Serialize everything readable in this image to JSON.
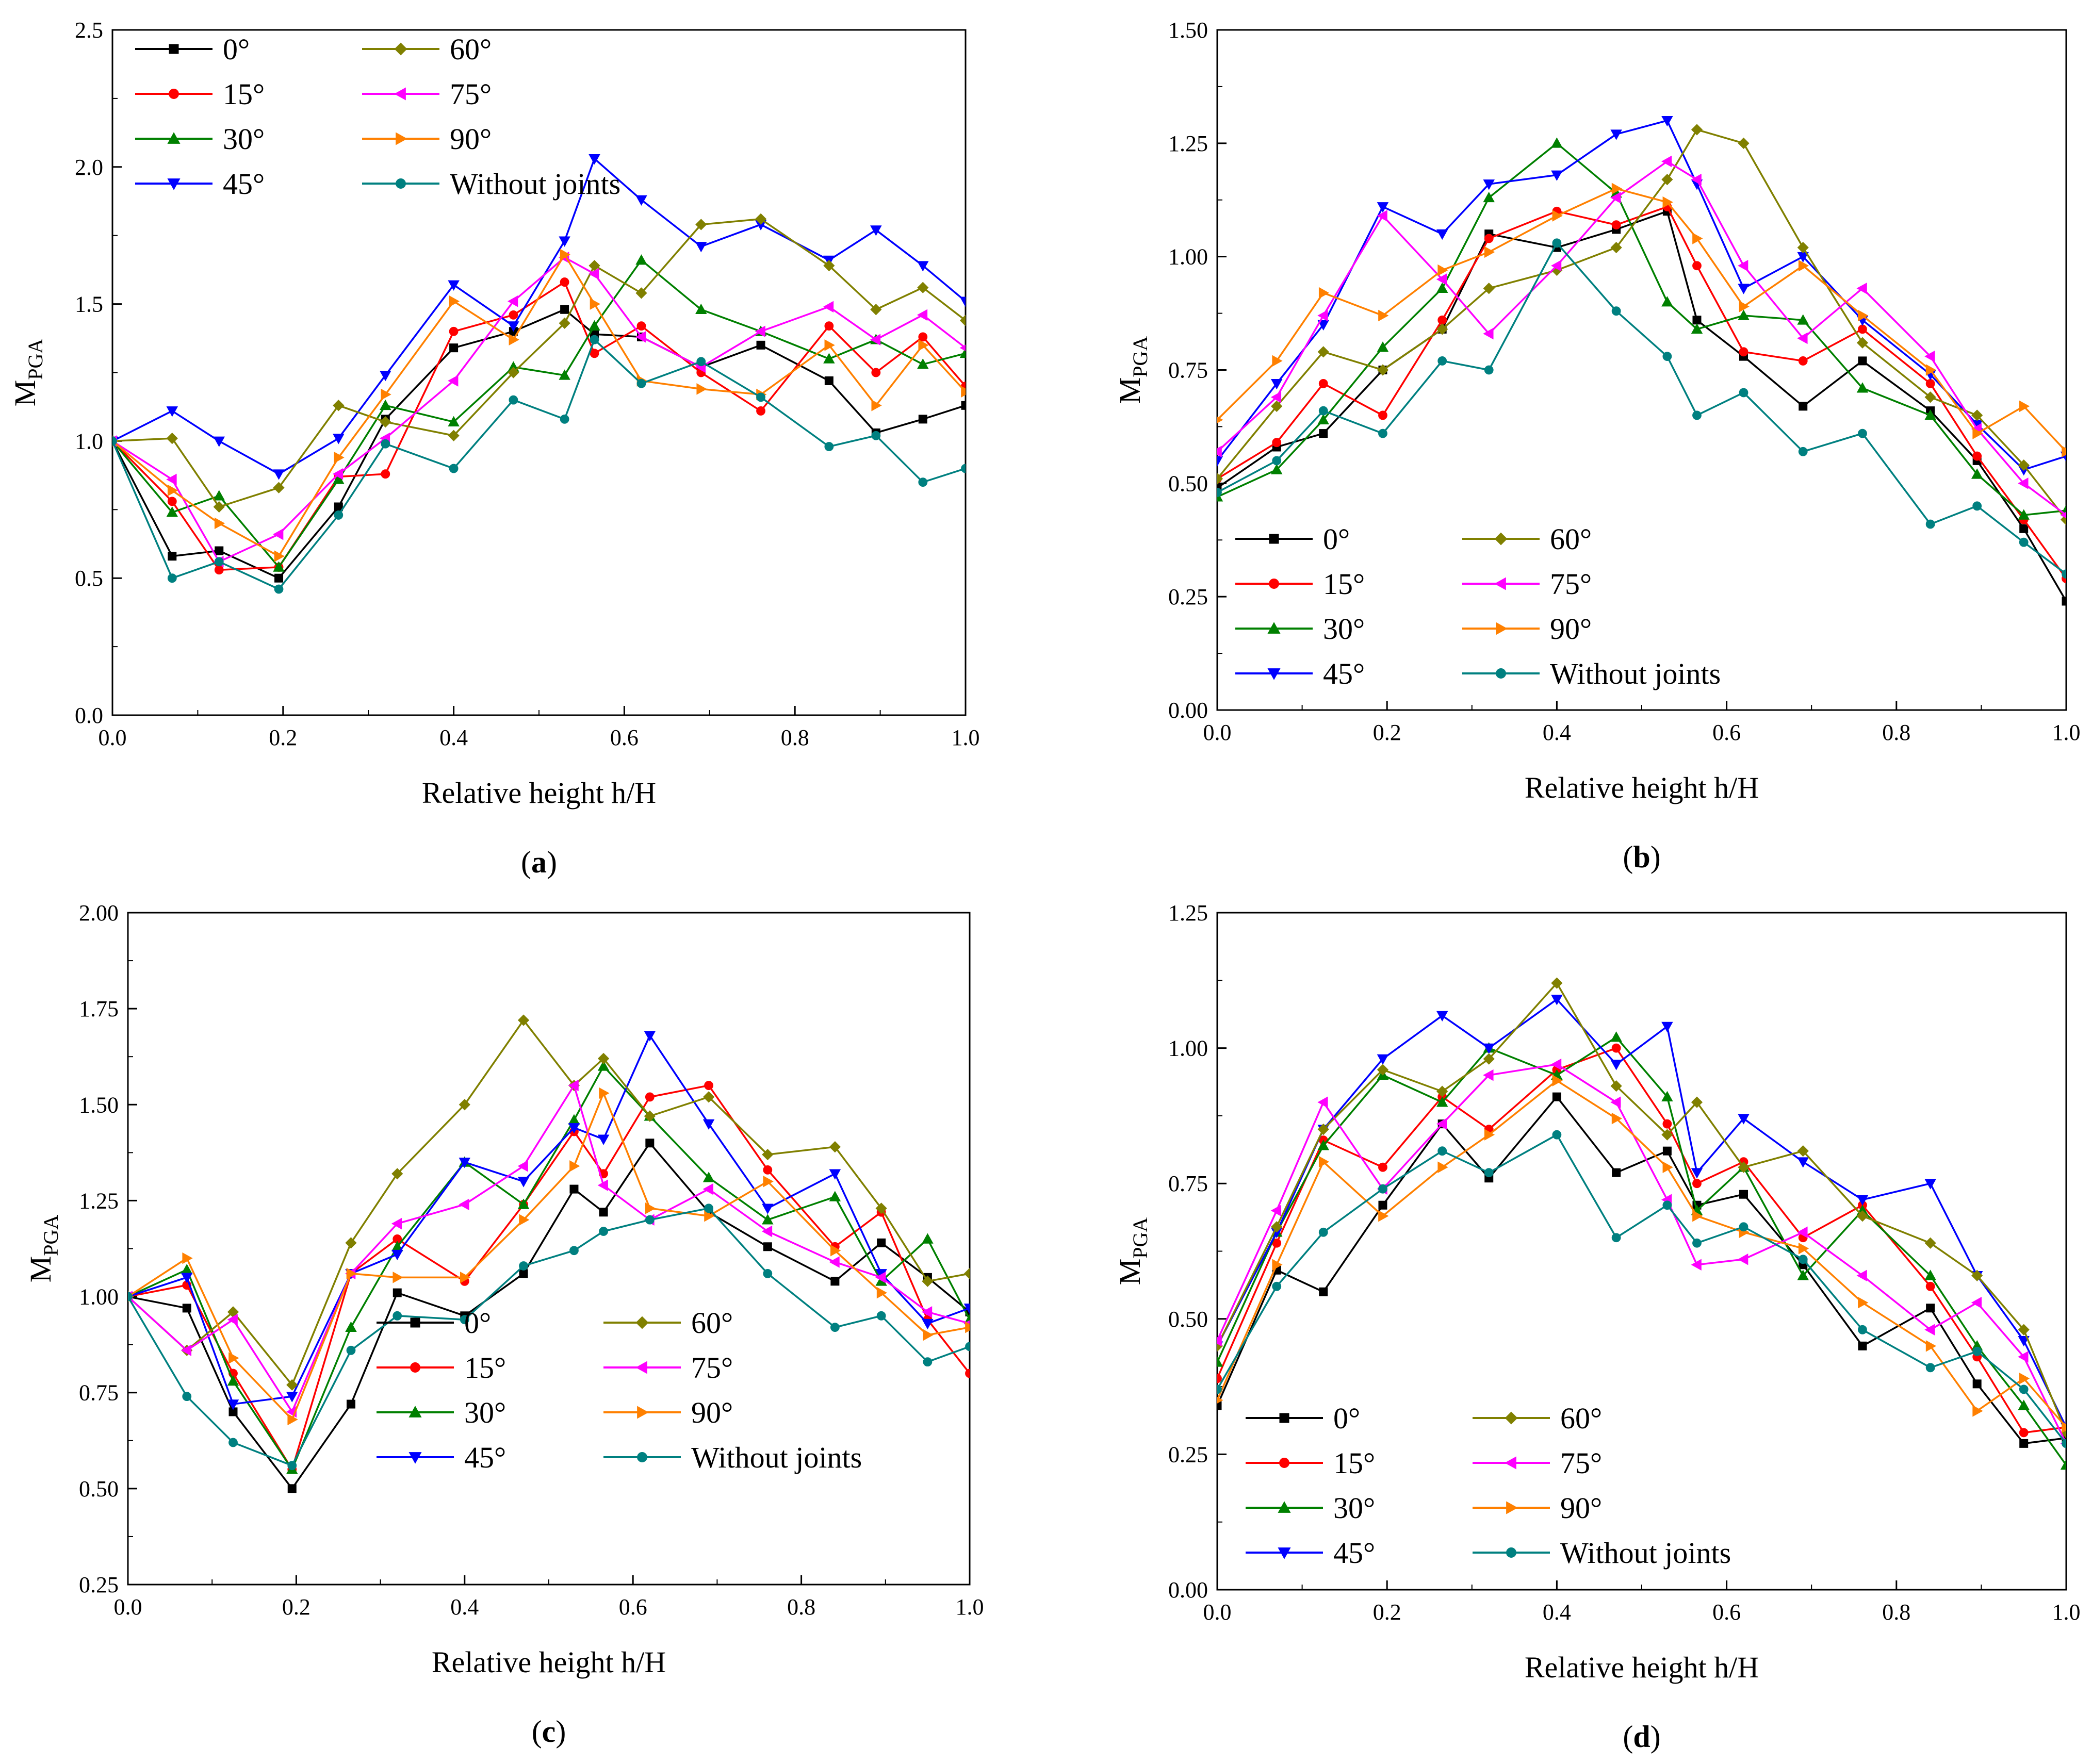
{
  "figure": {
    "colors": {
      "0°": "#000000",
      "15°": "#ff0000",
      "30°": "#008000",
      "45°": "#0000ff",
      "60°": "#808000",
      "75°": "#ff00ff",
      "90°": "#ff8000",
      "Without joints": "#008080"
    },
    "markers": {
      "0°": "square",
      "15°": "circle",
      "30°": "triangle-up",
      "45°": "triangle-down",
      "60°": "diamond",
      "75°": "triangle-left",
      "90°": "triangle-right",
      "Without joints": "circle"
    }
  },
  "chart_data": [
    {
      "panel": "a",
      "type": "line",
      "title": "",
      "caption_open": "(",
      "caption_letter": "a",
      "caption_close": ")",
      "xlabel": "Relative height h/H",
      "ylabel_main": "M",
      "ylabel_sub": "PGA",
      "xlim": [
        0.0,
        1.0
      ],
      "ylim": [
        0.0,
        2.5
      ],
      "xticks": [
        "0.0",
        "0.2",
        "0.4",
        "0.6",
        "0.8",
        "1.0"
      ],
      "yticks": [
        "0.0",
        "0.5",
        "1.0",
        "1.5",
        "2.0",
        "2.5"
      ],
      "legend_position": "top-left",
      "x": [
        0.0,
        0.07,
        0.125,
        0.195,
        0.265,
        0.32,
        0.4,
        0.47,
        0.53,
        0.565,
        0.62,
        0.69,
        0.76,
        0.84,
        0.895,
        0.95,
        1.0
      ],
      "series": [
        {
          "name": "0°",
          "values": [
            1.0,
            0.58,
            0.6,
            0.5,
            0.76,
            1.08,
            1.34,
            1.4,
            1.48,
            1.39,
            1.38,
            1.27,
            1.35,
            1.22,
            1.03,
            1.08,
            1.13
          ]
        },
        {
          "name": "15°",
          "values": [
            1.0,
            0.78,
            0.53,
            0.54,
            0.87,
            0.88,
            1.4,
            1.46,
            1.58,
            1.32,
            1.42,
            1.25,
            1.11,
            1.42,
            1.25,
            1.38,
            1.2
          ]
        },
        {
          "name": "30°",
          "values": [
            1.0,
            0.74,
            0.8,
            0.54,
            0.86,
            1.13,
            1.07,
            1.27,
            1.24,
            1.42,
            1.66,
            1.48,
            1.4,
            1.3,
            1.37,
            1.28,
            1.32
          ]
        },
        {
          "name": "45°",
          "values": [
            1.0,
            1.11,
            1.0,
            0.88,
            1.01,
            1.24,
            1.57,
            1.42,
            1.73,
            2.03,
            1.88,
            1.71,
            1.79,
            1.66,
            1.77,
            1.64,
            1.51
          ]
        },
        {
          "name": "60°",
          "values": [
            1.0,
            1.01,
            0.76,
            0.83,
            1.13,
            1.07,
            1.02,
            1.25,
            1.43,
            1.64,
            1.54,
            1.79,
            1.81,
            1.64,
            1.48,
            1.56,
            1.44
          ]
        },
        {
          "name": "75°",
          "values": [
            1.0,
            0.86,
            0.56,
            0.66,
            0.88,
            1.01,
            1.22,
            1.51,
            1.67,
            1.61,
            1.38,
            1.27,
            1.4,
            1.49,
            1.37,
            1.46,
            1.34
          ]
        },
        {
          "name": "90°",
          "values": [
            1.0,
            0.82,
            0.7,
            0.58,
            0.94,
            1.17,
            1.51,
            1.37,
            1.68,
            1.5,
            1.22,
            1.19,
            1.17,
            1.35,
            1.13,
            1.35,
            1.18
          ]
        },
        {
          "name": "Without joints",
          "values": [
            1.0,
            0.5,
            0.56,
            0.46,
            0.73,
            0.99,
            0.9,
            1.15,
            1.08,
            1.37,
            1.21,
            1.29,
            1.16,
            0.98,
            1.02,
            0.85,
            0.9
          ]
        }
      ]
    },
    {
      "panel": "b",
      "type": "line",
      "title": "",
      "caption_open": "(",
      "caption_letter": "b",
      "caption_close": ")",
      "xlabel": "Relative height h/H",
      "ylabel_main": "M",
      "ylabel_sub": "PGA",
      "xlim": [
        0.0,
        1.0
      ],
      "ylim": [
        0.0,
        1.5
      ],
      "xticks": [
        "0.0",
        "0.2",
        "0.4",
        "0.6",
        "0.8",
        "1.0"
      ],
      "yticks": [
        "0.00",
        "0.25",
        "0.50",
        "0.75",
        "1.00",
        "1.25",
        "1.50"
      ],
      "legend_position": "bottom-left",
      "x": [
        0.0,
        0.07,
        0.125,
        0.195,
        0.265,
        0.32,
        0.4,
        0.47,
        0.53,
        0.565,
        0.62,
        0.69,
        0.76,
        0.84,
        0.895,
        0.95,
        1.0
      ],
      "series": [
        {
          "name": "0°",
          "values": [
            0.49,
            0.58,
            0.61,
            0.75,
            0.84,
            1.05,
            1.02,
            1.06,
            1.1,
            0.86,
            0.78,
            0.67,
            0.77,
            0.66,
            0.55,
            0.4,
            0.24
          ]
        },
        {
          "name": "15°",
          "values": [
            0.51,
            0.59,
            0.72,
            0.65,
            0.86,
            1.04,
            1.1,
            1.07,
            1.11,
            0.98,
            0.79,
            0.77,
            0.84,
            0.72,
            0.56,
            0.42,
            0.29
          ]
        },
        {
          "name": "30°",
          "values": [
            0.47,
            0.53,
            0.64,
            0.8,
            0.93,
            1.13,
            1.25,
            1.14,
            0.9,
            0.84,
            0.87,
            0.86,
            0.71,
            0.65,
            0.52,
            0.43,
            0.44
          ]
        },
        {
          "name": "45°",
          "values": [
            0.55,
            0.72,
            0.85,
            1.11,
            1.05,
            1.16,
            1.18,
            1.27,
            1.3,
            1.16,
            0.93,
            1.0,
            0.86,
            0.74,
            0.63,
            0.53,
            0.56
          ]
        },
        {
          "name": "60°",
          "values": [
            0.51,
            0.67,
            0.79,
            0.75,
            0.84,
            0.93,
            0.97,
            1.02,
            1.17,
            1.28,
            1.25,
            1.02,
            0.81,
            0.69,
            0.65,
            0.54,
            0.42
          ]
        },
        {
          "name": "75°",
          "values": [
            0.57,
            0.69,
            0.87,
            1.09,
            0.95,
            0.83,
            0.98,
            1.13,
            1.21,
            1.17,
            0.98,
            0.82,
            0.93,
            0.78,
            0.62,
            0.5,
            0.43
          ]
        },
        {
          "name": "90°",
          "values": [
            0.64,
            0.77,
            0.92,
            0.87,
            0.97,
            1.01,
            1.09,
            1.15,
            1.12,
            1.04,
            0.89,
            0.98,
            0.87,
            0.75,
            0.61,
            0.67,
            0.57
          ]
        },
        {
          "name": "Without joints",
          "values": [
            0.48,
            0.55,
            0.66,
            0.61,
            0.77,
            0.75,
            1.03,
            0.88,
            0.78,
            0.65,
            0.7,
            0.57,
            0.61,
            0.41,
            0.45,
            0.37,
            0.3
          ]
        }
      ]
    },
    {
      "panel": "c",
      "type": "line",
      "title": "",
      "caption_open": "(",
      "caption_letter": "c",
      "caption_close": ")",
      "xlabel": "Relative height h/H",
      "ylabel_main": "M",
      "ylabel_sub": "PGA",
      "xlim": [
        0.0,
        1.0
      ],
      "ylim": [
        0.25,
        2.0
      ],
      "xticks": [
        "0.0",
        "0.2",
        "0.4",
        "0.6",
        "0.8",
        "1.0"
      ],
      "yticks": [
        "0.25",
        "0.50",
        "0.75",
        "1.00",
        "1.25",
        "1.50",
        "1.75",
        "2.00"
      ],
      "legend_position": "bottom-center",
      "x": [
        0.0,
        0.07,
        0.125,
        0.195,
        0.265,
        0.32,
        0.4,
        0.47,
        0.53,
        0.565,
        0.62,
        0.69,
        0.76,
        0.84,
        0.895,
        0.95,
        1.0
      ],
      "series": [
        {
          "name": "0°",
          "values": [
            1.0,
            0.97,
            0.7,
            0.5,
            0.72,
            1.01,
            0.95,
            1.06,
            1.28,
            1.22,
            1.4,
            1.22,
            1.13,
            1.04,
            1.14,
            1.05,
            0.96
          ]
        },
        {
          "name": "15°",
          "values": [
            1.0,
            1.03,
            0.8,
            0.55,
            1.06,
            1.15,
            1.04,
            1.24,
            1.43,
            1.32,
            1.52,
            1.55,
            1.33,
            1.13,
            1.22,
            0.94,
            0.8
          ]
        },
        {
          "name": "30°",
          "values": [
            1.0,
            1.07,
            0.78,
            0.55,
            0.92,
            1.13,
            1.35,
            1.24,
            1.46,
            1.6,
            1.47,
            1.31,
            1.2,
            1.26,
            1.04,
            1.15,
            0.94
          ]
        },
        {
          "name": "45°",
          "values": [
            1.0,
            1.05,
            0.72,
            0.74,
            1.06,
            1.11,
            1.35,
            1.3,
            1.44,
            1.41,
            1.68,
            1.45,
            1.23,
            1.32,
            1.06,
            0.93,
            0.97
          ]
        },
        {
          "name": "60°",
          "values": [
            1.0,
            0.86,
            0.96,
            0.77,
            1.14,
            1.32,
            1.5,
            1.72,
            1.55,
            1.62,
            1.47,
            1.52,
            1.37,
            1.39,
            1.23,
            1.04,
            1.06
          ]
        },
        {
          "name": "75°",
          "values": [
            1.0,
            0.86,
            0.94,
            0.7,
            1.06,
            1.19,
            1.24,
            1.34,
            1.55,
            1.29,
            1.2,
            1.28,
            1.17,
            1.09,
            1.05,
            0.96,
            0.93
          ]
        },
        {
          "name": "90°",
          "values": [
            1.0,
            1.1,
            0.84,
            0.68,
            1.06,
            1.05,
            1.05,
            1.2,
            1.34,
            1.53,
            1.23,
            1.21,
            1.3,
            1.12,
            1.01,
            0.9,
            0.92
          ]
        },
        {
          "name": "Without joints",
          "values": [
            1.0,
            0.74,
            0.62,
            0.56,
            0.86,
            0.95,
            0.94,
            1.08,
            1.12,
            1.17,
            1.2,
            1.23,
            1.06,
            0.92,
            0.95,
            0.83,
            0.87
          ]
        }
      ]
    },
    {
      "panel": "d",
      "type": "line",
      "title": "",
      "caption_open": "(",
      "caption_letter": "d",
      "caption_close": ")",
      "xlabel": "Relative height h/H",
      "ylabel_main": "M",
      "ylabel_sub": "PGA",
      "xlim": [
        0.0,
        1.0
      ],
      "ylim": [
        0.0,
        1.25
      ],
      "xticks": [
        "0.0",
        "0.2",
        "0.4",
        "0.6",
        "0.8",
        "1.0"
      ],
      "yticks": [
        "0.00",
        "0.25",
        "0.50",
        "0.75",
        "1.00",
        "1.25"
      ],
      "legend_position": "bottom-left",
      "x": [
        0.0,
        0.07,
        0.125,
        0.195,
        0.265,
        0.32,
        0.4,
        0.47,
        0.53,
        0.565,
        0.62,
        0.69,
        0.76,
        0.84,
        0.895,
        0.95,
        1.0
      ],
      "series": [
        {
          "name": "0°",
          "values": [
            0.34,
            0.59,
            0.55,
            0.71,
            0.86,
            0.76,
            0.91,
            0.77,
            0.81,
            0.71,
            0.73,
            0.6,
            0.45,
            0.52,
            0.38,
            0.27,
            0.28
          ]
        },
        {
          "name": "15°",
          "values": [
            0.39,
            0.64,
            0.83,
            0.78,
            0.91,
            0.85,
            0.96,
            1.0,
            0.86,
            0.75,
            0.79,
            0.65,
            0.71,
            0.56,
            0.43,
            0.29,
            0.3
          ]
        },
        {
          "name": "30°",
          "values": [
            0.42,
            0.66,
            0.82,
            0.95,
            0.9,
            1.0,
            0.95,
            1.02,
            0.91,
            0.7,
            0.78,
            0.58,
            0.7,
            0.58,
            0.45,
            0.34,
            0.23
          ]
        },
        {
          "name": "45°",
          "values": [
            0.45,
            0.66,
            0.85,
            0.98,
            1.06,
            1.0,
            1.09,
            0.97,
            1.04,
            0.77,
            0.87,
            0.79,
            0.72,
            0.75,
            0.58,
            0.46,
            0.3
          ]
        },
        {
          "name": "60°",
          "values": [
            0.45,
            0.67,
            0.85,
            0.96,
            0.92,
            0.98,
            1.12,
            0.93,
            0.84,
            0.9,
            0.78,
            0.81,
            0.69,
            0.64,
            0.58,
            0.48,
            0.29
          ]
        },
        {
          "name": "75°",
          "values": [
            0.46,
            0.7,
            0.9,
            0.74,
            0.86,
            0.95,
            0.97,
            0.9,
            0.72,
            0.6,
            0.61,
            0.66,
            0.58,
            0.48,
            0.53,
            0.43,
            0.27
          ]
        },
        {
          "name": "90°",
          "values": [
            0.35,
            0.6,
            0.79,
            0.69,
            0.78,
            0.84,
            0.94,
            0.87,
            0.78,
            0.69,
            0.66,
            0.63,
            0.53,
            0.45,
            0.33,
            0.39,
            0.3
          ]
        },
        {
          "name": "Without joints",
          "values": [
            0.37,
            0.56,
            0.66,
            0.74,
            0.81,
            0.77,
            0.84,
            0.65,
            0.71,
            0.64,
            0.67,
            0.61,
            0.48,
            0.41,
            0.44,
            0.37,
            0.27
          ]
        }
      ]
    }
  ]
}
